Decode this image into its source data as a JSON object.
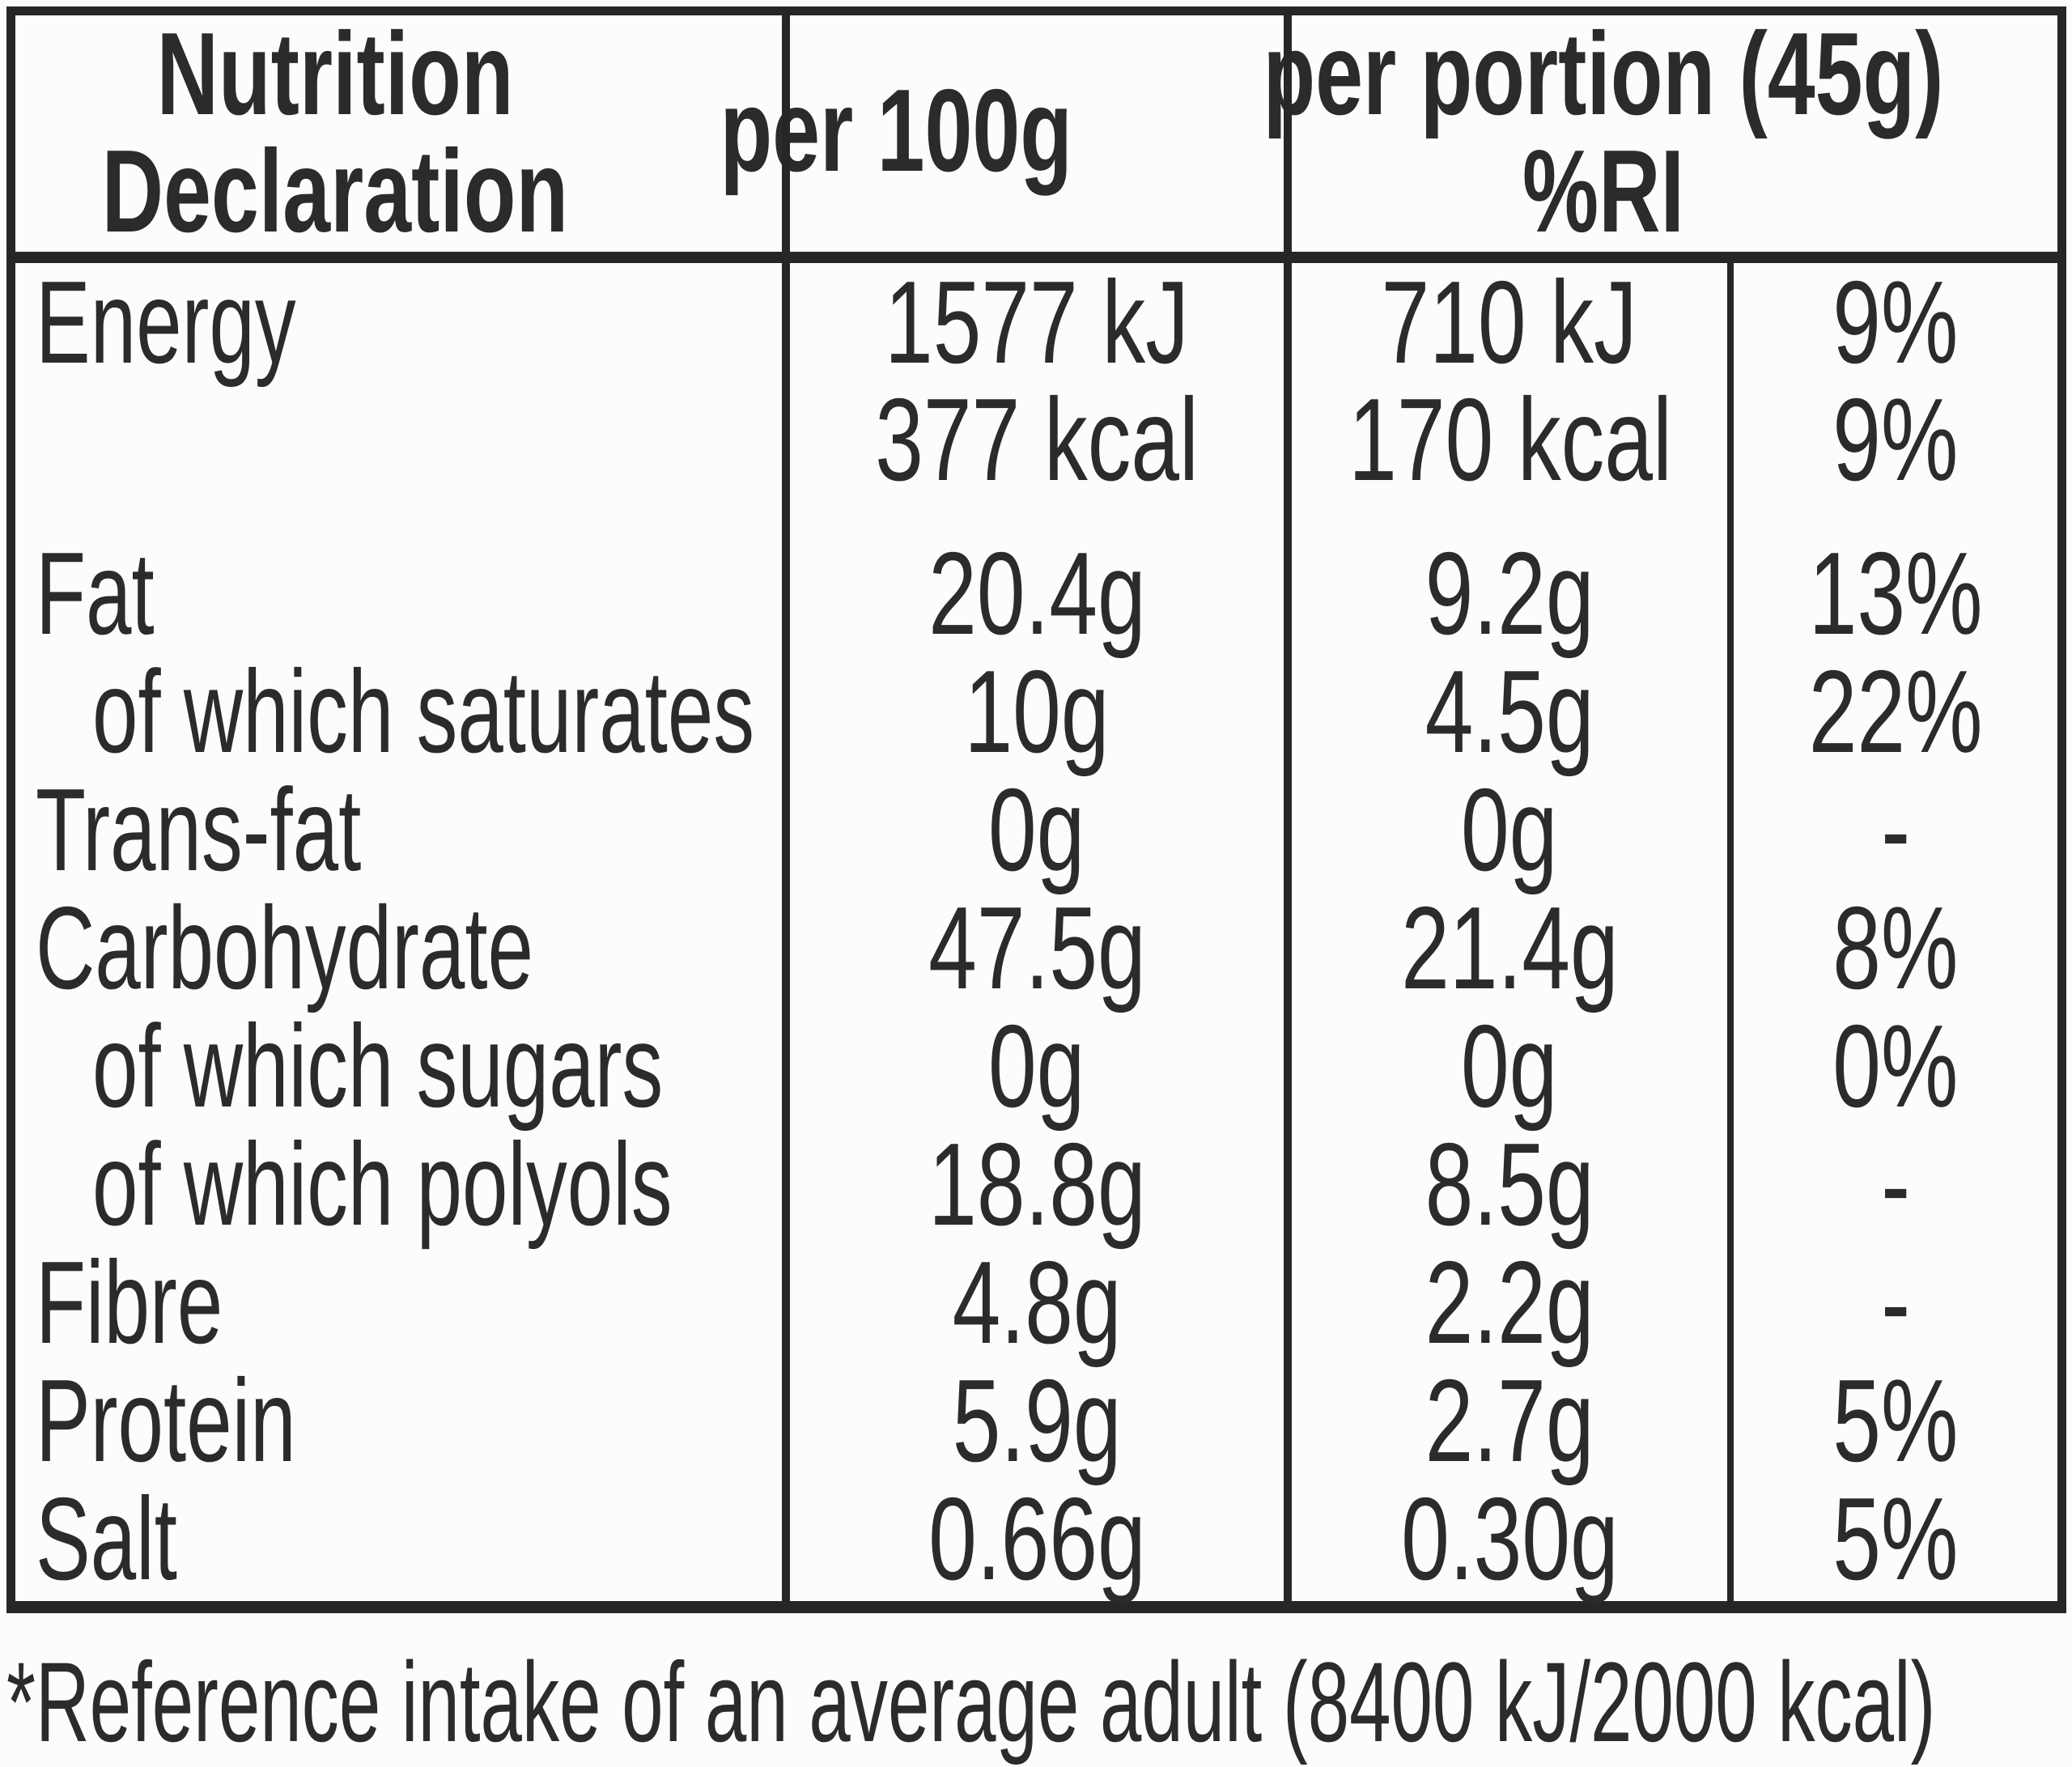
{
  "table": {
    "header": {
      "col1_line1": "Nutrition",
      "col1_line2": "Declaration",
      "col2": "per 100g",
      "col3_line1": "per portion (45g)",
      "col3_line2": "%RI"
    },
    "rows": [
      {
        "label": "Energy",
        "indent": false,
        "per100g": "1577 kJ",
        "portion": "710 kJ",
        "ri": "9%"
      },
      {
        "label": "",
        "indent": false,
        "per100g": "377 kcal",
        "portion": "170 kcal",
        "ri": "9%"
      },
      {
        "label": "Fat",
        "indent": false,
        "per100g": "20.4g",
        "portion": "9.2g",
        "ri": "13%"
      },
      {
        "label": "of which saturates",
        "indent": true,
        "per100g": "10g",
        "portion": "4.5g",
        "ri": "22%"
      },
      {
        "label": "Trans-fat",
        "indent": false,
        "per100g": "0g",
        "portion": "0g",
        "ri": "-"
      },
      {
        "label": "Carbohydrate",
        "indent": false,
        "per100g": "47.5g",
        "portion": "21.4g",
        "ri": "8%"
      },
      {
        "label": "of which sugars",
        "indent": true,
        "per100g": "0g",
        "portion": "0g",
        "ri": "0%"
      },
      {
        "label": "of which polyols",
        "indent": true,
        "per100g": "18.8g",
        "portion": "8.5g",
        "ri": "-"
      },
      {
        "label": "Fibre",
        "indent": false,
        "per100g": "4.8g",
        "portion": "2.2g",
        "ri": "-"
      },
      {
        "label": "Protein",
        "indent": false,
        "per100g": "5.9g",
        "portion": "2.7g",
        "ri": "5%"
      },
      {
        "label": "Salt",
        "indent": false,
        "per100g": "0.66g",
        "portion": "0.30g",
        "ri": "5%"
      }
    ],
    "footnote": "*Reference intake of an average adult (8400 kJ/2000 kcal)"
  },
  "colors": {
    "text": "#2b2b2b",
    "border": "#262626",
    "background": "#fcfcfc"
  }
}
